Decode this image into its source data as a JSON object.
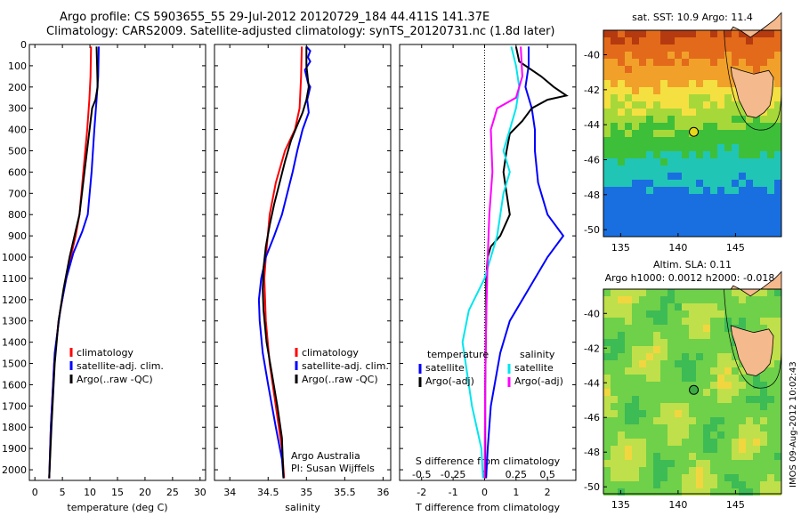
{
  "header": {
    "line1": "Argo profile: CS 5903655_55 29-Jul-2012 20120729_184 44.411S 141.37E",
    "line2": "Climatology: CARS2009. Satellite-adjusted climatology: synTS_20120731.nc (1.8d later)"
  },
  "colors": {
    "climatology": "#ff0000",
    "satellite": "#0000ff",
    "argo": "#000000",
    "salinity_sat": "#00e5ee",
    "salinity_argo": "#ff00ff",
    "land": "#f4b98c"
  },
  "chart_data": [
    {
      "type": "line",
      "id": "temperature",
      "xlabel": "temperature (deg C)",
      "ylabel": "",
      "xlim": [
        -1,
        31
      ],
      "ylim": [
        2050,
        0
      ],
      "xticks": [
        0,
        5,
        10,
        15,
        20,
        25,
        30
      ],
      "yticks": [
        0,
        100,
        200,
        300,
        400,
        500,
        600,
        700,
        800,
        900,
        1000,
        1100,
        1200,
        1300,
        1400,
        1500,
        1600,
        1700,
        1800,
        1900,
        2000
      ],
      "legend": [
        "climatology",
        "satellite-adj. clim.",
        "Argo(..raw -QC)"
      ],
      "series": [
        {
          "name": "climatology",
          "color": "#ff0000",
          "points": [
            [
              10.2,
              10
            ],
            [
              10.1,
              150
            ],
            [
              9.9,
              260
            ],
            [
              9.5,
              400
            ],
            [
              8.8,
              600
            ],
            [
              8.1,
              800
            ],
            [
              7.4,
              900
            ],
            [
              6.5,
              1000
            ],
            [
              5.3,
              1150
            ],
            [
              4.3,
              1300
            ],
            [
              3.5,
              1500
            ],
            [
              2.9,
              1800
            ],
            [
              2.6,
              2040
            ]
          ]
        },
        {
          "name": "satellite-adj. clim.",
          "color": "#0000ff",
          "points": [
            [
              11.6,
              10
            ],
            [
              11.5,
              150
            ],
            [
              11.2,
              260
            ],
            [
              10.8,
              400
            ],
            [
              10.3,
              600
            ],
            [
              9.6,
              800
            ],
            [
              8.6,
              880
            ],
            [
              7,
              980
            ],
            [
              5.7,
              1100
            ],
            [
              4.6,
              1250
            ],
            [
              3.6,
              1450
            ],
            [
              2.9,
              1800
            ],
            [
              2.6,
              2040
            ]
          ]
        },
        {
          "name": "Argo(..raw -QC)",
          "color": "#000000",
          "points": [
            [
              11.2,
              10
            ],
            [
              11.3,
              100
            ],
            [
              11.4,
              200
            ],
            [
              11.0,
              260
            ],
            [
              10.4,
              300
            ],
            [
              9.7,
              450
            ],
            [
              9.0,
              600
            ],
            [
              8.1,
              800
            ],
            [
              7.2,
              900
            ],
            [
              6.3,
              1000
            ],
            [
              5.2,
              1150
            ],
            [
              4.3,
              1300
            ],
            [
              3.6,
              1500
            ],
            [
              3.0,
              1800
            ],
            [
              2.6,
              2040
            ]
          ]
        }
      ]
    },
    {
      "type": "line",
      "id": "salinity",
      "xlabel": "salinity",
      "ylabel": "",
      "xlim": [
        33.8,
        36.1
      ],
      "ylim": [
        2050,
        0
      ],
      "xticks": [
        34,
        34.5,
        35,
        35.5,
        36
      ],
      "legend": [
        "climatology",
        "satellite-adj. clim.",
        "Argo(..raw -QC)"
      ],
      "annotation": [
        "Argo Australia",
        "PI: Susan Wijffels"
      ],
      "series": [
        {
          "name": "climatology",
          "color": "#ff0000",
          "points": [
            [
              34.94,
              10
            ],
            [
              34.93,
              150
            ],
            [
              34.91,
              300
            ],
            [
              34.85,
              400
            ],
            [
              34.72,
              500
            ],
            [
              34.6,
              650
            ],
            [
              34.52,
              800
            ],
            [
              34.47,
              1000
            ],
            [
              34.45,
              1100
            ],
            [
              34.47,
              1300
            ],
            [
              34.52,
              1500
            ],
            [
              34.6,
              1700
            ],
            [
              34.68,
              1900
            ],
            [
              34.71,
              2040
            ]
          ]
        },
        {
          "name": "satellite-adj. clim.",
          "color": "#0000ff",
          "points": [
            [
              35.0,
              10
            ],
            [
              35.05,
              30
            ],
            [
              35.02,
              60
            ],
            [
              35.05,
              80
            ],
            [
              34.98,
              120
            ],
            [
              35.02,
              180
            ],
            [
              35.05,
              200
            ],
            [
              35.01,
              260
            ],
            [
              35.03,
              320
            ],
            [
              34.95,
              400
            ],
            [
              34.88,
              500
            ],
            [
              34.82,
              600
            ],
            [
              34.75,
              700
            ],
            [
              34.68,
              800
            ],
            [
              34.58,
              900
            ],
            [
              34.47,
              1000
            ],
            [
              34.41,
              1100
            ],
            [
              34.38,
              1200
            ],
            [
              34.39,
              1300
            ],
            [
              34.43,
              1450
            ],
            [
              34.5,
              1600
            ],
            [
              34.6,
              1800
            ],
            [
              34.68,
              1950
            ],
            [
              34.7,
              2040
            ]
          ]
        },
        {
          "name": "Argo(..raw -QC)",
          "color": "#000000",
          "points": [
            [
              35.0,
              10
            ],
            [
              35.0,
              100
            ],
            [
              35.03,
              200
            ],
            [
              35.0,
              260
            ],
            [
              34.95,
              320
            ],
            [
              34.88,
              380
            ],
            [
              34.8,
              450
            ],
            [
              34.72,
              550
            ],
            [
              34.65,
              650
            ],
            [
              34.58,
              750
            ],
            [
              34.52,
              850
            ],
            [
              34.47,
              950
            ],
            [
              34.44,
              1050
            ],
            [
              34.43,
              1150
            ],
            [
              34.44,
              1250
            ],
            [
              34.48,
              1400
            ],
            [
              34.55,
              1550
            ],
            [
              34.62,
              1700
            ],
            [
              34.68,
              1850
            ],
            [
              34.7,
              2040
            ]
          ]
        }
      ]
    },
    {
      "type": "line",
      "id": "difference",
      "xlabel": "T difference from climatology",
      "xlabel_top": "S difference from climatology",
      "xlim": [
        -2.7,
        2.9
      ],
      "ylim": [
        2050,
        0
      ],
      "xticks": [
        -2,
        -1,
        0,
        1,
        2
      ],
      "top_ticks": [
        {
          "label": "-0.5",
          "at": -2
        },
        {
          "label": "-0.25",
          "at": -1
        },
        {
          "label": "0",
          "at": 0
        },
        {
          "label": "0.25",
          "at": 1
        },
        {
          "label": "0.5",
          "at": 2
        }
      ],
      "legend_temperature": [
        "temperature",
        "satellite",
        "Argo(-adj)"
      ],
      "legend_salinity": [
        "salinity",
        "satellite",
        "Argo(-adj)"
      ],
      "series": [
        {
          "name": "T satellite",
          "color": "#0000ff",
          "points": [
            [
              1.4,
              10
            ],
            [
              1.4,
              100
            ],
            [
              1.3,
              200
            ],
            [
              1.5,
              300
            ],
            [
              1.6,
              400
            ],
            [
              1.6,
              500
            ],
            [
              1.7,
              650
            ],
            [
              2.0,
              800
            ],
            [
              2.5,
              900
            ],
            [
              2.0,
              1000
            ],
            [
              1.4,
              1150
            ],
            [
              0.8,
              1300
            ],
            [
              0.5,
              1450
            ],
            [
              0.2,
              1700
            ],
            [
              0.1,
              1900
            ],
            [
              0.05,
              2040
            ]
          ]
        },
        {
          "name": "T Argo(-adj)",
          "color": "#000000",
          "points": [
            [
              1.0,
              10
            ],
            [
              1.1,
              80
            ],
            [
              1.8,
              150
            ],
            [
              2.2,
              200
            ],
            [
              2.6,
              240
            ],
            [
              2.0,
              260
            ],
            [
              1.5,
              300
            ],
            [
              1.2,
              360
            ],
            [
              0.8,
              420
            ],
            [
              0.7,
              500
            ],
            [
              0.6,
              600
            ],
            [
              0.7,
              700
            ],
            [
              0.8,
              800
            ],
            [
              0.5,
              900
            ],
            [
              0.2,
              950
            ],
            [
              0.1,
              1000
            ],
            [
              0.05,
              1100
            ],
            [
              0.05,
              1300
            ],
            [
              0.02,
              1600
            ],
            [
              0.02,
              2040
            ]
          ]
        },
        {
          "name": "S satellite",
          "color": "#00e5ee",
          "points": [
            [
              0.85,
              10
            ],
            [
              1.0,
              100
            ],
            [
              1.1,
              200
            ],
            [
              1.0,
              300
            ],
            [
              0.8,
              400
            ],
            [
              0.6,
              500
            ],
            [
              0.8,
              600
            ],
            [
              0.6,
              700
            ],
            [
              0.4,
              900
            ],
            [
              0.0,
              1100
            ],
            [
              -0.5,
              1250
            ],
            [
              -0.7,
              1400
            ],
            [
              -0.4,
              1700
            ],
            [
              -0.1,
              1900
            ],
            [
              -0.05,
              2040
            ]
          ]
        },
        {
          "name": "S Argo(-adj)",
          "color": "#ff00ff",
          "points": [
            [
              1.15,
              10
            ],
            [
              1.2,
              150
            ],
            [
              1.0,
              250
            ],
            [
              0.4,
              300
            ],
            [
              0.3,
              350
            ],
            [
              0.2,
              400
            ],
            [
              0.25,
              600
            ],
            [
              0.15,
              800
            ],
            [
              0.1,
              1000
            ],
            [
              0.05,
              1300
            ],
            [
              0.02,
              1600
            ],
            [
              0.0,
              2040
            ]
          ]
        }
      ]
    },
    {
      "type": "heatmap",
      "id": "sst_map",
      "title": "sat. SST: 10.9 Argo: 11.4",
      "xlim": [
        133.5,
        149
      ],
      "ylim": [
        -50.4,
        -38.6
      ],
      "xticks": [
        135,
        140,
        145
      ],
      "yticks": [
        -40,
        -42,
        -44,
        -46,
        -48,
        -50
      ],
      "argo_position": [
        141.37,
        -44.411
      ]
    },
    {
      "type": "heatmap",
      "id": "sla_map",
      "title_line1": "Altim. SLA: 0.11",
      "title_line2": "Argo h1000: 0.0012 h2000: -0.018",
      "xlim": [
        133.5,
        149
      ],
      "ylim": [
        -50.4,
        -38.6
      ],
      "xticks": [
        135,
        140,
        145
      ],
      "yticks": [
        -40,
        -42,
        -44,
        -46,
        -48,
        -50
      ],
      "argo_position": [
        141.37,
        -44.411
      ]
    }
  ],
  "stamp": "IMOS 09-Aug-2012 10:02:43"
}
